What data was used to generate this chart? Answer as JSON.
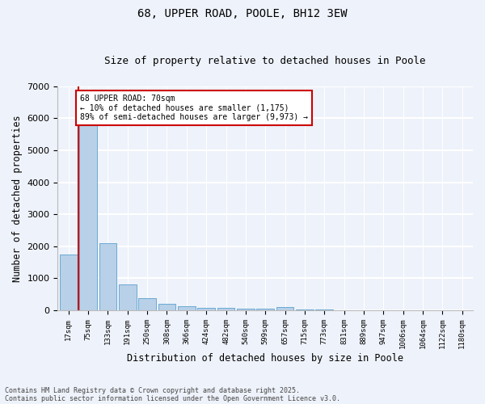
{
  "title1": "68, UPPER ROAD, POOLE, BH12 3EW",
  "title2": "Size of property relative to detached houses in Poole",
  "xlabel": "Distribution of detached houses by size in Poole",
  "ylabel": "Number of detached properties",
  "categories": [
    "17sqm",
    "75sqm",
    "133sqm",
    "191sqm",
    "250sqm",
    "308sqm",
    "366sqm",
    "424sqm",
    "482sqm",
    "540sqm",
    "599sqm",
    "657sqm",
    "715sqm",
    "773sqm",
    "831sqm",
    "889sqm",
    "947sqm",
    "1006sqm",
    "1064sqm",
    "1122sqm",
    "1180sqm"
  ],
  "values": [
    1750,
    5850,
    2100,
    820,
    380,
    200,
    120,
    80,
    80,
    55,
    50,
    110,
    30,
    20,
    15,
    10,
    10,
    8,
    8,
    6,
    5
  ],
  "bar_color": "#b8d0e8",
  "bar_edge_color": "#6aaad4",
  "vline_x": 0.5,
  "vline_color": "#cc0000",
  "annotation_text": "68 UPPER ROAD: 70sqm\n← 10% of detached houses are smaller (1,175)\n89% of semi-detached houses are larger (9,973) →",
  "annotation_box_color": "#cc0000",
  "ylim": [
    0,
    7000
  ],
  "yticks": [
    0,
    1000,
    2000,
    3000,
    4000,
    5000,
    6000,
    7000
  ],
  "footer1": "Contains HM Land Registry data © Crown copyright and database right 2025.",
  "footer2": "Contains public sector information licensed under the Open Government Licence v3.0.",
  "bg_color": "#eef2fa",
  "plot_bg_color": "#eef2fa"
}
